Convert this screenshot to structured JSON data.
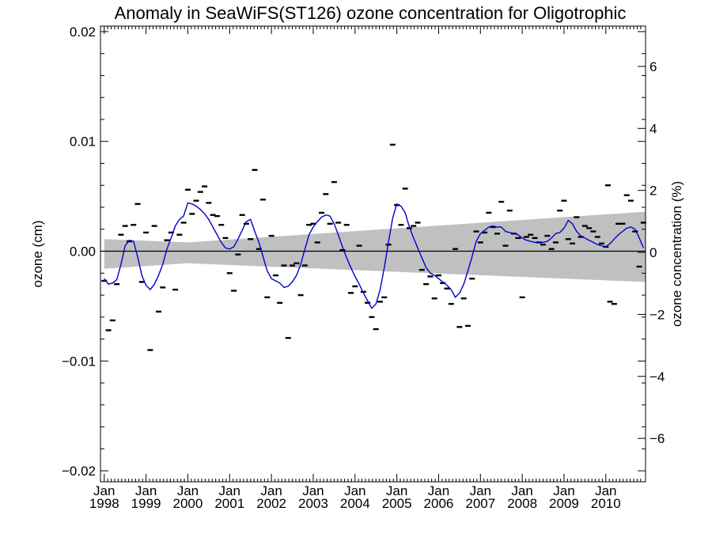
{
  "chart_data": {
    "type": "line",
    "title": "Anomaly in SeaWiFS(ST126) ozone concentration for Oligotrophic",
    "ylabel": "ozone (cm)",
    "y2label": "ozone concentration (%)",
    "ylim": [
      -0.021,
      0.0205
    ],
    "y2lim": [
      -7.4,
      7.3
    ],
    "xlim": [
      1998.0,
      2010.95
    ],
    "y_ticks": [
      {
        "value": 0.02,
        "label": "0.02"
      },
      {
        "value": 0.01,
        "label": "0.01"
      },
      {
        "value": 0.0,
        "label": "0.00"
      },
      {
        "value": -0.01,
        "label": "−0.01"
      },
      {
        "value": -0.02,
        "label": "−0.02"
      }
    ],
    "y2_ticks": [
      {
        "value": 6,
        "label": "6"
      },
      {
        "value": 4,
        "label": "4"
      },
      {
        "value": 2,
        "label": "2"
      },
      {
        "value": 0,
        "label": "0"
      },
      {
        "value": -2,
        "label": "−2"
      },
      {
        "value": -4,
        "label": "−4"
      },
      {
        "value": -6,
        "label": "−6"
      }
    ],
    "x_ticks": [
      {
        "value": 1998,
        "label_top": "Jan",
        "label_bottom": "1998"
      },
      {
        "value": 1999,
        "label_top": "Jan",
        "label_bottom": "1999"
      },
      {
        "value": 2000,
        "label_top": "Jan",
        "label_bottom": "2000"
      },
      {
        "value": 2001,
        "label_top": "Jan",
        "label_bottom": "2001"
      },
      {
        "value": 2002,
        "label_top": "Jan",
        "label_bottom": "2002"
      },
      {
        "value": 2003,
        "label_top": "Jan",
        "label_bottom": "2003"
      },
      {
        "value": 2004,
        "label_top": "Jan",
        "label_bottom": "2004"
      },
      {
        "value": 2005,
        "label_top": "Jan",
        "label_bottom": "2005"
      },
      {
        "value": 2006,
        "label_top": "Jan",
        "label_bottom": "2006"
      },
      {
        "value": 2007,
        "label_top": "Jan",
        "label_bottom": "2007"
      },
      {
        "value": 2008,
        "label_top": "Jan",
        "label_bottom": "2008"
      },
      {
        "value": 2009,
        "label_top": "Jan",
        "label_bottom": "2009"
      },
      {
        "value": 2010,
        "label_top": "Jan",
        "label_bottom": "2010"
      }
    ],
    "monthly_anomaly_points": [
      [
        1998.0,
        -0.0027
      ],
      [
        1998.1,
        -0.0072
      ],
      [
        1998.2,
        -0.0063
      ],
      [
        1998.3,
        -0.003
      ],
      [
        1998.4,
        0.0015
      ],
      [
        1998.5,
        0.0023
      ],
      [
        1998.6,
        0.0009
      ],
      [
        1998.7,
        0.0024
      ],
      [
        1998.8,
        0.0043
      ],
      [
        1998.9,
        -0.0028
      ],
      [
        1999.0,
        0.0017
      ],
      [
        1999.1,
        -0.009
      ],
      [
        1999.2,
        0.0023
      ],
      [
        1999.3,
        -0.0055
      ],
      [
        1999.4,
        -0.0033
      ],
      [
        1999.5,
        0.001
      ],
      [
        1999.6,
        0.0017
      ],
      [
        1999.7,
        -0.0035
      ],
      [
        1999.8,
        0.0015
      ],
      [
        1999.9,
        0.0026
      ],
      [
        2000.0,
        0.0056
      ],
      [
        2000.1,
        0.0034
      ],
      [
        2000.2,
        0.0046
      ],
      [
        2000.3,
        0.0054
      ],
      [
        2000.4,
        0.0059
      ],
      [
        2000.5,
        0.0044
      ],
      [
        2000.6,
        0.0033
      ],
      [
        2000.7,
        0.0032
      ],
      [
        2000.8,
        0.0024
      ],
      [
        2000.9,
        0.0012
      ],
      [
        2001.0,
        -0.002
      ],
      [
        2001.1,
        -0.0036
      ],
      [
        2001.2,
        -0.0003
      ],
      [
        2001.3,
        0.0033
      ],
      [
        2001.4,
        0.0025
      ],
      [
        2001.5,
        0.0011
      ],
      [
        2001.6,
        0.0074
      ],
      [
        2001.7,
        0.0002
      ],
      [
        2001.8,
        0.0047
      ],
      [
        2001.9,
        -0.0042
      ],
      [
        2002.0,
        0.0014
      ],
      [
        2002.1,
        -0.0022
      ],
      [
        2002.2,
        -0.0047
      ],
      [
        2002.3,
        -0.0013
      ],
      [
        2002.4,
        -0.0079
      ],
      [
        2002.5,
        -0.0013
      ],
      [
        2002.6,
        -0.0011
      ],
      [
        2002.7,
        -0.004
      ],
      [
        2002.8,
        -0.0013
      ],
      [
        2002.9,
        0.0024
      ],
      [
        2003.0,
        0.0025
      ],
      [
        2003.1,
        0.0008
      ],
      [
        2003.2,
        0.0035
      ],
      [
        2003.3,
        0.0052
      ],
      [
        2003.4,
        0.0025
      ],
      [
        2003.5,
        0.0063
      ],
      [
        2003.6,
        0.0026
      ],
      [
        2003.7,
        0.0001
      ],
      [
        2003.8,
        0.0024
      ],
      [
        2003.9,
        -0.0038
      ],
      [
        2004.0,
        -0.0032
      ],
      [
        2004.1,
        0.0005
      ],
      [
        2004.2,
        -0.0037
      ],
      [
        2004.3,
        -0.0047
      ],
      [
        2004.4,
        -0.006
      ],
      [
        2004.5,
        -0.0071
      ],
      [
        2004.6,
        -0.0046
      ],
      [
        2004.7,
        -0.0042
      ],
      [
        2004.8,
        0.0006
      ],
      [
        2004.9,
        0.0097
      ],
      [
        2005.0,
        0.0042
      ],
      [
        2005.1,
        0.0024
      ],
      [
        2005.2,
        0.0057
      ],
      [
        2005.3,
        0.0021
      ],
      [
        2005.4,
        0.0023
      ],
      [
        2005.5,
        0.0026
      ],
      [
        2005.6,
        -0.0017
      ],
      [
        2005.7,
        -0.003
      ],
      [
        2005.8,
        -0.0023
      ],
      [
        2005.9,
        -0.0043
      ],
      [
        2006.0,
        -0.0022
      ],
      [
        2006.1,
        -0.0029
      ],
      [
        2006.2,
        -0.0034
      ],
      [
        2006.3,
        -0.0048
      ],
      [
        2006.4,
        0.0002
      ],
      [
        2006.5,
        -0.0069
      ],
      [
        2006.6,
        -0.0043
      ],
      [
        2006.7,
        -0.0068
      ],
      [
        2006.8,
        -0.0025
      ],
      [
        2006.9,
        0.0018
      ],
      [
        2007.0,
        0.0008
      ],
      [
        2007.1,
        0.0017
      ],
      [
        2007.2,
        0.0035
      ],
      [
        2007.3,
        0.0022
      ],
      [
        2007.4,
        0.0016
      ],
      [
        2007.5,
        0.0045
      ],
      [
        2007.6,
        0.0005
      ],
      [
        2007.7,
        0.0037
      ],
      [
        2007.8,
        0.0016
      ],
      [
        2007.9,
        0.0012
      ],
      [
        2008.0,
        -0.0042
      ],
      [
        2008.1,
        0.0013
      ],
      [
        2008.2,
        0.0015
      ],
      [
        2008.3,
        0.0012
      ],
      [
        2008.4,
        0.0008
      ],
      [
        2008.5,
        0.0006
      ],
      [
        2008.6,
        0.0014
      ],
      [
        2008.7,
        0.0002
      ],
      [
        2008.8,
        0.0008
      ],
      [
        2008.9,
        0.0037
      ],
      [
        2009.0,
        0.0046
      ],
      [
        2009.1,
        0.0011
      ],
      [
        2009.2,
        0.0007
      ],
      [
        2009.3,
        0.0031
      ],
      [
        2009.4,
        0.0013
      ],
      [
        2009.5,
        0.0023
      ],
      [
        2009.6,
        0.0021
      ],
      [
        2009.7,
        0.0018
      ],
      [
        2009.8,
        0.0013
      ],
      [
        2009.9,
        0.0007
      ],
      [
        2010.0,
        0.0004
      ],
      [
        2010.05,
        0.006
      ],
      [
        2010.1,
        -0.0046
      ],
      [
        2010.2,
        -0.0048
      ],
      [
        2010.3,
        0.0025
      ],
      [
        2010.4,
        0.0025
      ],
      [
        2010.5,
        0.0051
      ],
      [
        2010.6,
        0.0046
      ],
      [
        2010.7,
        0.0018
      ],
      [
        2010.8,
        -0.0014
      ],
      [
        2010.9,
        0.0026
      ]
    ],
    "smoothed_series": {
      "color": "#0000cc",
      "points": [
        [
          1998.0,
          -0.0025
        ],
        [
          1998.1,
          -0.003
        ],
        [
          1998.2,
          -0.0029
        ],
        [
          1998.3,
          -0.0026
        ],
        [
          1998.4,
          -0.0012
        ],
        [
          1998.5,
          0.0005
        ],
        [
          1998.6,
          0.001
        ],
        [
          1998.7,
          0.0009
        ],
        [
          1998.8,
          -0.0005
        ],
        [
          1998.9,
          -0.0022
        ],
        [
          1999.0,
          -0.0031
        ],
        [
          1999.1,
          -0.0035
        ],
        [
          1999.2,
          -0.003
        ],
        [
          1999.3,
          -0.0022
        ],
        [
          1999.4,
          -0.0012
        ],
        [
          1999.5,
          0.0002
        ],
        [
          1999.6,
          0.0012
        ],
        [
          1999.7,
          0.0023
        ],
        [
          1999.8,
          0.0029
        ],
        [
          1999.9,
          0.0032
        ],
        [
          2000.0,
          0.0044
        ],
        [
          2000.1,
          0.0043
        ],
        [
          2000.2,
          0.0041
        ],
        [
          2000.3,
          0.0038
        ],
        [
          2000.4,
          0.0034
        ],
        [
          2000.5,
          0.0029
        ],
        [
          2000.6,
          0.0022
        ],
        [
          2000.7,
          0.0015
        ],
        [
          2000.8,
          0.0008
        ],
        [
          2000.9,
          0.0003
        ],
        [
          2001.0,
          0.0002
        ],
        [
          2001.1,
          0.0004
        ],
        [
          2001.2,
          0.0011
        ],
        [
          2001.3,
          0.0019
        ],
        [
          2001.4,
          0.0027
        ],
        [
          2001.5,
          0.0029
        ],
        [
          2001.6,
          0.0018
        ],
        [
          2001.7,
          0.0008
        ],
        [
          2001.8,
          -0.0005
        ],
        [
          2001.9,
          -0.0018
        ],
        [
          2002.0,
          -0.0025
        ],
        [
          2002.1,
          -0.0027
        ],
        [
          2002.2,
          -0.0029
        ],
        [
          2002.3,
          -0.0033
        ],
        [
          2002.4,
          -0.0032
        ],
        [
          2002.5,
          -0.0028
        ],
        [
          2002.6,
          -0.0022
        ],
        [
          2002.7,
          -0.0012
        ],
        [
          2002.8,
          0.0002
        ],
        [
          2002.9,
          0.0015
        ],
        [
          2003.0,
          0.0022
        ],
        [
          2003.1,
          0.0027
        ],
        [
          2003.2,
          0.0031
        ],
        [
          2003.3,
          0.0033
        ],
        [
          2003.4,
          0.0032
        ],
        [
          2003.5,
          0.0025
        ],
        [
          2003.6,
          0.0015
        ],
        [
          2003.7,
          0.0004
        ],
        [
          2003.8,
          -0.0006
        ],
        [
          2003.9,
          -0.0015
        ],
        [
          2004.0,
          -0.0023
        ],
        [
          2004.1,
          -0.003
        ],
        [
          2004.2,
          -0.0038
        ],
        [
          2004.3,
          -0.0045
        ],
        [
          2004.4,
          -0.0052
        ],
        [
          2004.5,
          -0.0048
        ],
        [
          2004.6,
          -0.0035
        ],
        [
          2004.7,
          -0.0015
        ],
        [
          2004.8,
          0.0008
        ],
        [
          2004.9,
          0.003
        ],
        [
          2005.0,
          0.0043
        ],
        [
          2005.1,
          0.0041
        ],
        [
          2005.2,
          0.0035
        ],
        [
          2005.3,
          0.0022
        ],
        [
          2005.4,
          0.0012
        ],
        [
          2005.5,
          0.0003
        ],
        [
          2005.6,
          -0.0006
        ],
        [
          2005.7,
          -0.0015
        ],
        [
          2005.8,
          -0.002
        ],
        [
          2005.9,
          -0.0022
        ],
        [
          2006.0,
          -0.0025
        ],
        [
          2006.1,
          -0.0028
        ],
        [
          2006.2,
          -0.0031
        ],
        [
          2006.3,
          -0.0035
        ],
        [
          2006.4,
          -0.0042
        ],
        [
          2006.5,
          -0.0038
        ],
        [
          2006.6,
          -0.003
        ],
        [
          2006.7,
          -0.0018
        ],
        [
          2006.8,
          -0.0005
        ],
        [
          2006.9,
          0.0009
        ],
        [
          2007.0,
          0.0016
        ],
        [
          2007.1,
          0.0019
        ],
        [
          2007.2,
          0.0022
        ],
        [
          2007.3,
          0.0023
        ],
        [
          2007.4,
          0.0022
        ],
        [
          2007.5,
          0.0022
        ],
        [
          2007.6,
          0.0018
        ],
        [
          2007.7,
          0.0017
        ],
        [
          2007.8,
          0.0016
        ],
        [
          2007.9,
          0.0015
        ],
        [
          2008.0,
          0.0012
        ],
        [
          2008.1,
          0.001
        ],
        [
          2008.2,
          0.0009
        ],
        [
          2008.3,
          0.0008
        ],
        [
          2008.4,
          0.0008
        ],
        [
          2008.5,
          0.0008
        ],
        [
          2008.6,
          0.0009
        ],
        [
          2008.7,
          0.0012
        ],
        [
          2008.8,
          0.0016
        ],
        [
          2008.9,
          0.0017
        ],
        [
          2009.0,
          0.0021
        ],
        [
          2009.1,
          0.0028
        ],
        [
          2009.2,
          0.0025
        ],
        [
          2009.3,
          0.0018
        ],
        [
          2009.4,
          0.0014
        ],
        [
          2009.5,
          0.0012
        ],
        [
          2009.6,
          0.001
        ],
        [
          2009.7,
          0.0008
        ],
        [
          2009.8,
          0.0006
        ],
        [
          2009.9,
          0.0005
        ],
        [
          2010.0,
          0.0004
        ],
        [
          2010.1,
          0.0007
        ],
        [
          2010.2,
          0.0011
        ],
        [
          2010.3,
          0.0015
        ],
        [
          2010.4,
          0.0018
        ],
        [
          2010.5,
          0.0021
        ],
        [
          2010.6,
          0.0022
        ],
        [
          2010.7,
          0.002
        ],
        [
          2010.8,
          0.0012
        ],
        [
          2010.9,
          0.0003
        ]
      ]
    },
    "trend_band": {
      "color": "#c0c0c0",
      "upper": [
        [
          1998.0,
          0.0011
        ],
        [
          2000.0,
          0.0008
        ],
        [
          2010.95,
          0.0036
        ]
      ],
      "lower": [
        [
          1998.0,
          -0.0016
        ],
        [
          2000.0,
          -0.0011
        ],
        [
          2010.95,
          -0.0028
        ]
      ]
    },
    "zero_line": true,
    "grid": false,
    "legend": "none"
  }
}
